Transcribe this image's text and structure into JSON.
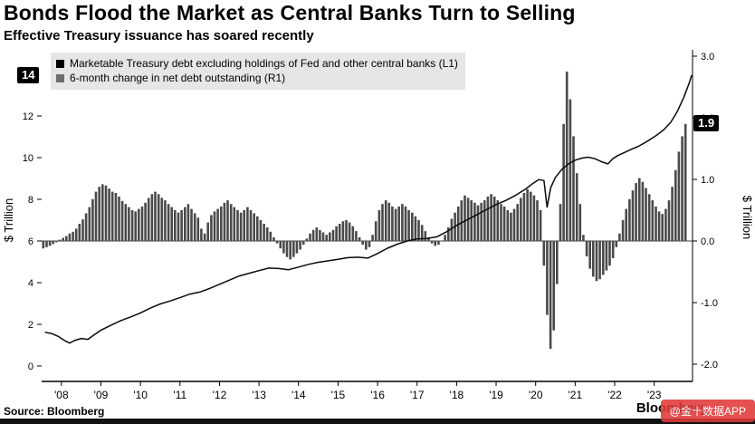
{
  "header": {
    "title": "Bonds Flood the Market as Central Banks Turn to Selling",
    "subtitle": "Effective Treasury issuance has soared recently"
  },
  "legend": {
    "items": [
      {
        "label": "Marketable Treasury debt excluding holdings of Fed and other central banks (L1)",
        "color": "#000000"
      },
      {
        "label": "6-month change in net debt outstanding (R1)",
        "color": "#6e6e6e"
      }
    ]
  },
  "footer": {
    "source": "Source: Bloomberg",
    "logo": "Bloomberg",
    "watermark": "@金十数据APP"
  },
  "chart_data": {
    "type": "line+bar",
    "title": "Bonds Flood the Market as Central Banks Turn to Selling",
    "subtitle": "Effective Treasury issuance has soared recently",
    "grid": false,
    "legend_position": "top-left",
    "left_axis": {
      "label": "$ Trillion",
      "ticks": [
        0,
        2,
        4,
        6,
        8,
        10,
        12
      ],
      "range": [
        0,
        15.5
      ],
      "max_badge": "14"
    },
    "right_axis": {
      "label": "$ Trillion",
      "ticks": [
        "-2.0",
        "-1.0",
        "0.0",
        "1.0",
        "2.0",
        "3.0"
      ],
      "range": [
        -2.3,
        3.1
      ],
      "latest_badge": "1.9"
    },
    "x_axis": {
      "range": [
        2007.5,
        2023.97
      ],
      "tick_years": [
        2008,
        2009,
        2010,
        2011,
        2012,
        2013,
        2014,
        2015,
        2016,
        2017,
        2018,
        2019,
        2020,
        2021,
        2022,
        2023
      ],
      "tick_labels": [
        "'08",
        "'09",
        "'10",
        "'11",
        "'12",
        "'13",
        "'14",
        "'15",
        "'16",
        "'17",
        "'18",
        "'19",
        "'20",
        "'21",
        "'22",
        "'23"
      ]
    },
    "line_series": {
      "name": "Marketable Treasury debt excluding holdings of Fed and other central banks (L1)",
      "axis": "L1",
      "color": "#0a0a0a",
      "latest": 13.96,
      "points": [
        [
          2007.58,
          1.62
        ],
        [
          2007.75,
          1.56
        ],
        [
          2007.92,
          1.42
        ],
        [
          2008.08,
          1.22
        ],
        [
          2008.21,
          1.1
        ],
        [
          2008.33,
          1.22
        ],
        [
          2008.5,
          1.32
        ],
        [
          2008.67,
          1.28
        ],
        [
          2008.83,
          1.5
        ],
        [
          2009.0,
          1.72
        ],
        [
          2009.25,
          1.95
        ],
        [
          2009.5,
          2.18
        ],
        [
          2009.75,
          2.35
        ],
        [
          2010.0,
          2.55
        ],
        [
          2010.25,
          2.78
        ],
        [
          2010.5,
          2.98
        ],
        [
          2010.75,
          3.12
        ],
        [
          2011.0,
          3.28
        ],
        [
          2011.25,
          3.45
        ],
        [
          2011.5,
          3.55
        ],
        [
          2011.75,
          3.72
        ],
        [
          2012.0,
          3.92
        ],
        [
          2012.25,
          4.12
        ],
        [
          2012.5,
          4.32
        ],
        [
          2012.75,
          4.45
        ],
        [
          2013.0,
          4.58
        ],
        [
          2013.25,
          4.7
        ],
        [
          2013.5,
          4.68
        ],
        [
          2013.75,
          4.62
        ],
        [
          2014.0,
          4.75
        ],
        [
          2014.25,
          4.88
        ],
        [
          2014.5,
          4.98
        ],
        [
          2014.75,
          5.05
        ],
        [
          2015.0,
          5.12
        ],
        [
          2015.25,
          5.2
        ],
        [
          2015.5,
          5.22
        ],
        [
          2015.75,
          5.18
        ],
        [
          2016.0,
          5.4
        ],
        [
          2016.25,
          5.65
        ],
        [
          2016.5,
          5.85
        ],
        [
          2016.75,
          6.0
        ],
        [
          2017.0,
          6.1
        ],
        [
          2017.25,
          6.12
        ],
        [
          2017.5,
          6.2
        ],
        [
          2017.75,
          6.45
        ],
        [
          2018.0,
          6.75
        ],
        [
          2018.25,
          7.0
        ],
        [
          2018.5,
          7.25
        ],
        [
          2018.75,
          7.5
        ],
        [
          2019.0,
          7.75
        ],
        [
          2019.25,
          7.95
        ],
        [
          2019.5,
          8.2
        ],
        [
          2019.75,
          8.5
        ],
        [
          2019.92,
          8.75
        ],
        [
          2020.08,
          8.95
        ],
        [
          2020.21,
          8.9
        ],
        [
          2020.29,
          7.62
        ],
        [
          2020.38,
          8.55
        ],
        [
          2020.5,
          9.05
        ],
        [
          2020.67,
          9.45
        ],
        [
          2020.83,
          9.7
        ],
        [
          2021.0,
          9.88
        ],
        [
          2021.17,
          9.98
        ],
        [
          2021.33,
          10.02
        ],
        [
          2021.5,
          9.95
        ],
        [
          2021.67,
          9.8
        ],
        [
          2021.83,
          9.7
        ],
        [
          2021.95,
          9.95
        ],
        [
          2022.08,
          10.1
        ],
        [
          2022.25,
          10.25
        ],
        [
          2022.42,
          10.4
        ],
        [
          2022.58,
          10.52
        ],
        [
          2022.75,
          10.7
        ],
        [
          2022.92,
          10.9
        ],
        [
          2023.08,
          11.1
        ],
        [
          2023.25,
          11.35
        ],
        [
          2023.42,
          11.7
        ],
        [
          2023.58,
          12.2
        ],
        [
          2023.75,
          12.9
        ],
        [
          2023.88,
          13.55
        ],
        [
          2023.95,
          13.96
        ]
      ]
    },
    "bar_series": {
      "name": "6-month change in net debt outstanding (R1)",
      "axis": "R1",
      "color": "#4a4a4a",
      "latest": 1.9,
      "start": 2007.542,
      "step": 0.08333,
      "values": [
        -0.12,
        -0.1,
        -0.08,
        -0.05,
        -0.02,
        0.02,
        0.05,
        0.08,
        0.12,
        0.15,
        0.2,
        0.28,
        0.35,
        0.45,
        0.55,
        0.68,
        0.8,
        0.88,
        0.92,
        0.9,
        0.85,
        0.8,
        0.78,
        0.72,
        0.65,
        0.6,
        0.55,
        0.5,
        0.48,
        0.52,
        0.56,
        0.62,
        0.7,
        0.76,
        0.8,
        0.76,
        0.7,
        0.66,
        0.6,
        0.55,
        0.5,
        0.46,
        0.5,
        0.55,
        0.6,
        0.52,
        0.45,
        0.38,
        0.2,
        0.12,
        0.3,
        0.42,
        0.48,
        0.52,
        0.56,
        0.62,
        0.66,
        0.6,
        0.55,
        0.5,
        0.46,
        0.5,
        0.55,
        0.5,
        0.45,
        0.4,
        0.34,
        0.28,
        0.22,
        0.15,
        0.06,
        -0.04,
        -0.12,
        -0.2,
        -0.26,
        -0.3,
        -0.26,
        -0.2,
        -0.14,
        -0.06,
        0.04,
        0.12,
        0.18,
        0.22,
        0.18,
        0.14,
        0.1,
        0.14,
        0.18,
        0.24,
        0.28,
        0.32,
        0.34,
        0.3,
        0.24,
        0.16,
        0.06,
        -0.06,
        -0.14,
        -0.1,
        0.1,
        0.32,
        0.5,
        0.6,
        0.66,
        0.62,
        0.56,
        0.52,
        0.56,
        0.6,
        0.56,
        0.5,
        0.46,
        0.4,
        0.34,
        0.26,
        0.16,
        0.06,
        -0.04,
        -0.08,
        -0.06,
        0.0,
        0.1,
        0.22,
        0.36,
        0.46,
        0.56,
        0.66,
        0.74,
        0.7,
        0.66,
        0.62,
        0.58,
        0.62,
        0.66,
        0.72,
        0.76,
        0.72,
        0.66,
        0.6,
        0.56,
        0.5,
        0.46,
        0.52,
        0.6,
        0.7,
        0.78,
        0.84,
        0.8,
        0.74,
        0.66,
        0.5,
        -0.4,
        -1.2,
        -1.75,
        -1.45,
        -0.7,
        0.6,
        1.9,
        2.75,
        2.3,
        1.7,
        1.1,
        0.6,
        0.1,
        -0.25,
        -0.45,
        -0.58,
        -0.65,
        -0.62,
        -0.55,
        -0.48,
        -0.4,
        -0.28,
        -0.1,
        0.12,
        0.34,
        0.52,
        0.68,
        0.82,
        0.94,
        1.02,
        0.96,
        0.86,
        0.76,
        0.66,
        0.56,
        0.48,
        0.44,
        0.52,
        0.66,
        0.88,
        1.15,
        1.45,
        1.7,
        1.9
      ]
    }
  }
}
